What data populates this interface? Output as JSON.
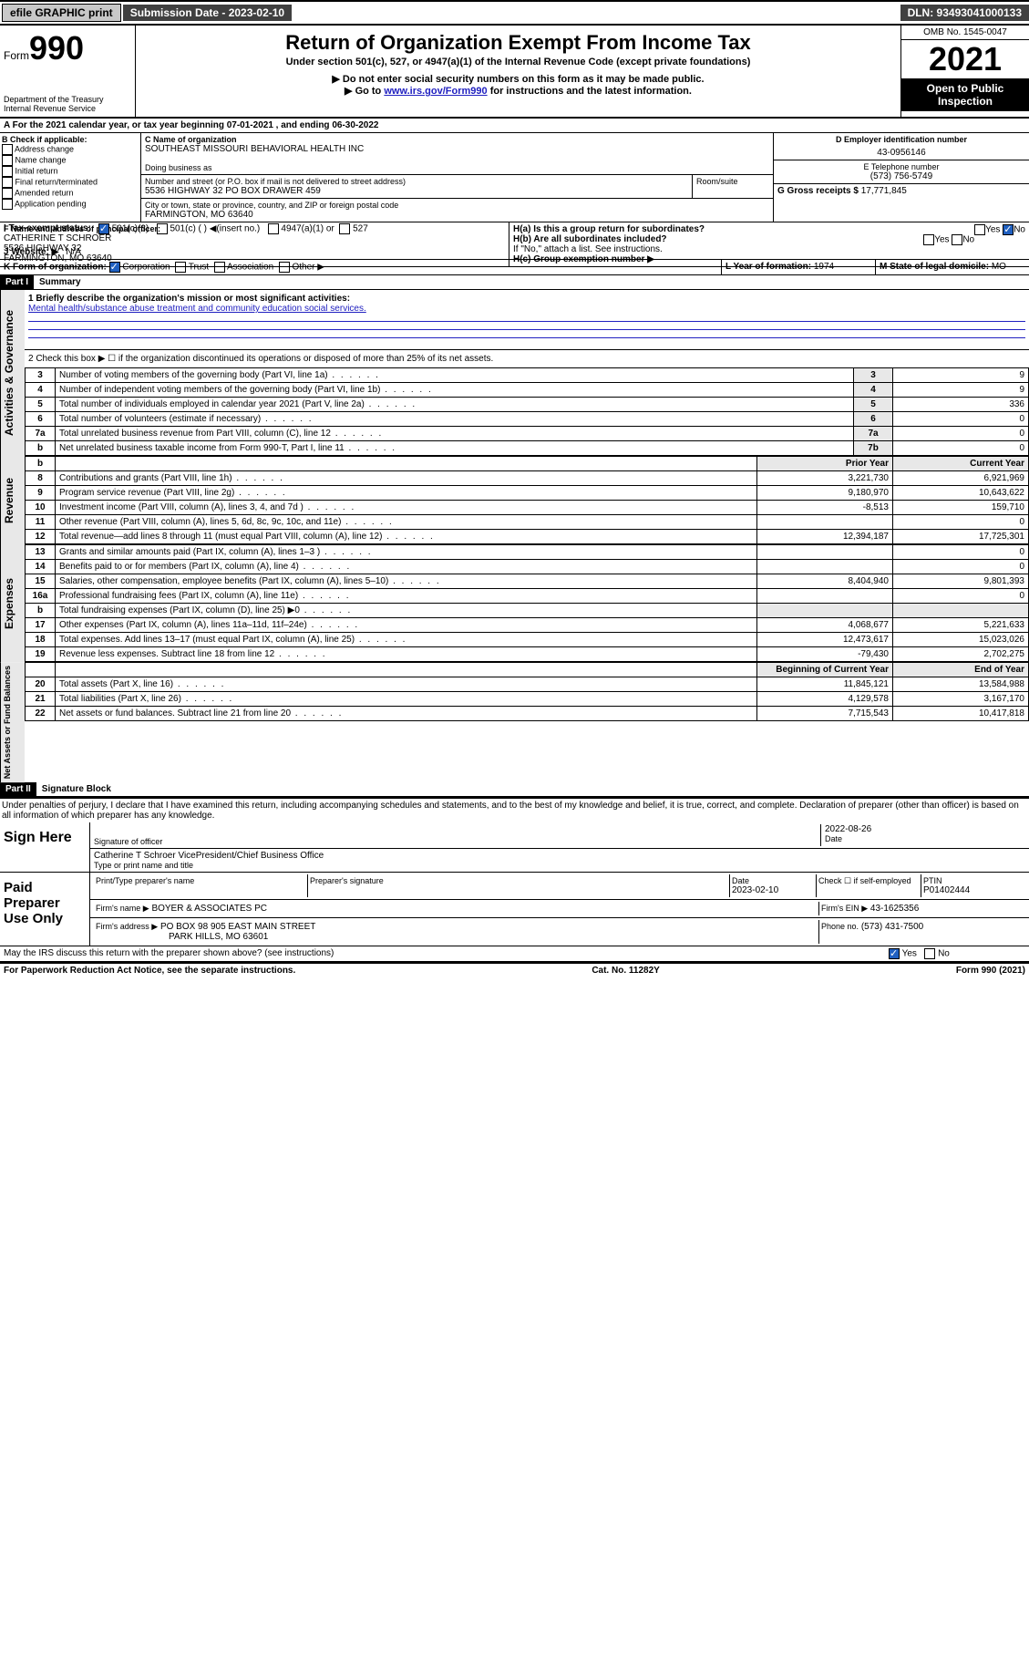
{
  "topbar": {
    "efile": "efile GRAPHIC print",
    "submission_label": "Submission Date - 2023-02-10",
    "dln": "DLN: 93493041000133"
  },
  "header": {
    "form_prefix": "Form",
    "form_number": "990",
    "dept": "Department of the Treasury",
    "irs": "Internal Revenue Service",
    "title": "Return of Organization Exempt From Income Tax",
    "subtitle": "Under section 501(c), 527, or 4947(a)(1) of the Internal Revenue Code (except private foundations)",
    "note1": "▶ Do not enter social security numbers on this form as it may be made public.",
    "note2_pre": "▶ Go to ",
    "note2_link": "www.irs.gov/Form990",
    "note2_post": " for instructions and the latest information.",
    "omb": "OMB No. 1545-0047",
    "year": "2021",
    "open": "Open to Public Inspection"
  },
  "period": {
    "text": "A For the 2021 calendar year, or tax year beginning 07-01-2021   , and ending 06-30-2022"
  },
  "boxB": {
    "title": "B Check if applicable:",
    "opts": [
      "Address change",
      "Name change",
      "Initial return",
      "Final return/terminated",
      "Amended return",
      "Application pending"
    ]
  },
  "boxC": {
    "label": "C Name of organization",
    "name": "SOUTHEAST MISSOURI BEHAVIORAL HEALTH INC",
    "dba_label": "Doing business as",
    "street_label": "Number and street (or P.O. box if mail is not delivered to street address)",
    "room_label": "Room/suite",
    "street": "5536 HIGHWAY 32 PO BOX DRAWER 459",
    "city_label": "City or town, state or province, country, and ZIP or foreign postal code",
    "city": "FARMINGTON, MO  63640"
  },
  "boxD": {
    "label": "D Employer identification number",
    "ein": "43-0956146"
  },
  "boxE": {
    "label": "E Telephone number",
    "phone": "(573) 756-5749"
  },
  "boxG": {
    "label": "G Gross receipts $",
    "amount": "17,771,845"
  },
  "boxF": {
    "label": "F Name and address of principal officer:",
    "name": "CATHERINE T SCHROER",
    "addr1": "5536 HIGHWAY 32",
    "addr2": "FARMINGTON, MO  63640"
  },
  "boxH": {
    "a_label": "H(a)  Is this a group return for subordinates?",
    "b_label": "H(b)  Are all subordinates included?",
    "b_note": "If \"No,\" attach a list. See instructions.",
    "c_label": "H(c)  Group exemption number ▶"
  },
  "boxI": {
    "label": "I   Tax-exempt status:",
    "o501c3": "501(c)(3)",
    "o501c": "501(c) (  ) ◀(insert no.)",
    "o4947": "4947(a)(1) or",
    "o527": "527"
  },
  "boxJ": {
    "label": "J   Website: ▶",
    "val": "N/A"
  },
  "boxK": {
    "label": "K Form of organization:",
    "corp": "Corporation",
    "trust": "Trust",
    "assoc": "Association",
    "other": "Other ▶"
  },
  "boxL": {
    "label": "L Year of formation:",
    "val": "1974"
  },
  "boxM": {
    "label": "M State of legal domicile:",
    "val": "MO"
  },
  "part1": {
    "header": "Part I",
    "title": "Summary",
    "line1_label": "1   Briefly describe the organization's mission or most significant activities:",
    "line1_val": "Mental health/substance abuse treatment and community education social services.",
    "line2": "2   Check this box ▶ ☐  if the organization discontinued its operations or disposed of more than 25% of its net assets.",
    "rows_single": [
      {
        "n": "3",
        "desc": "Number of voting members of the governing body (Part VI, line 1a)",
        "box": "3",
        "val": "9"
      },
      {
        "n": "4",
        "desc": "Number of independent voting members of the governing body (Part VI, line 1b)",
        "box": "4",
        "val": "9"
      },
      {
        "n": "5",
        "desc": "Total number of individuals employed in calendar year 2021 (Part V, line 2a)",
        "box": "5",
        "val": "336"
      },
      {
        "n": "6",
        "desc": "Total number of volunteers (estimate if necessary)",
        "box": "6",
        "val": "0"
      },
      {
        "n": "7a",
        "desc": "Total unrelated business revenue from Part VIII, column (C), line 12",
        "box": "7a",
        "val": "0"
      },
      {
        "n": "b",
        "desc": "Net unrelated business taxable income from Form 990-T, Part I, line 11",
        "box": "7b",
        "val": "0"
      }
    ],
    "col_headers": {
      "prior": "Prior Year",
      "curr": "Current Year"
    },
    "revenue_rows": [
      {
        "n": "8",
        "desc": "Contributions and grants (Part VIII, line 1h)",
        "prior": "3,221,730",
        "curr": "6,921,969"
      },
      {
        "n": "9",
        "desc": "Program service revenue (Part VIII, line 2g)",
        "prior": "9,180,970",
        "curr": "10,643,622"
      },
      {
        "n": "10",
        "desc": "Investment income (Part VIII, column (A), lines 3, 4, and 7d )",
        "prior": "-8,513",
        "curr": "159,710"
      },
      {
        "n": "11",
        "desc": "Other revenue (Part VIII, column (A), lines 5, 6d, 8c, 9c, 10c, and 11e)",
        "prior": "",
        "curr": "0"
      },
      {
        "n": "12",
        "desc": "Total revenue—add lines 8 through 11 (must equal Part VIII, column (A), line 12)",
        "prior": "12,394,187",
        "curr": "17,725,301"
      }
    ],
    "expense_rows": [
      {
        "n": "13",
        "desc": "Grants and similar amounts paid (Part IX, column (A), lines 1–3 )",
        "prior": "",
        "curr": "0"
      },
      {
        "n": "14",
        "desc": "Benefits paid to or for members (Part IX, column (A), line 4)",
        "prior": "",
        "curr": "0"
      },
      {
        "n": "15",
        "desc": "Salaries, other compensation, employee benefits (Part IX, column (A), lines 5–10)",
        "prior": "8,404,940",
        "curr": "9,801,393"
      },
      {
        "n": "16a",
        "desc": "Professional fundraising fees (Part IX, column (A), line 11e)",
        "prior": "",
        "curr": "0"
      },
      {
        "n": "b",
        "desc": "Total fundraising expenses (Part IX, column (D), line 25) ▶0",
        "prior": "GREY",
        "curr": "GREY"
      },
      {
        "n": "17",
        "desc": "Other expenses (Part IX, column (A), lines 11a–11d, 11f–24e)",
        "prior": "4,068,677",
        "curr": "5,221,633"
      },
      {
        "n": "18",
        "desc": "Total expenses. Add lines 13–17 (must equal Part IX, column (A), line 25)",
        "prior": "12,473,617",
        "curr": "15,023,026"
      },
      {
        "n": "19",
        "desc": "Revenue less expenses. Subtract line 18 from line 12",
        "prior": "-79,430",
        "curr": "2,702,275"
      }
    ],
    "net_headers": {
      "prior": "Beginning of Current Year",
      "curr": "End of Year"
    },
    "net_rows": [
      {
        "n": "20",
        "desc": "Total assets (Part X, line 16)",
        "prior": "11,845,121",
        "curr": "13,584,988"
      },
      {
        "n": "21",
        "desc": "Total liabilities (Part X, line 26)",
        "prior": "4,129,578",
        "curr": "3,167,170"
      },
      {
        "n": "22",
        "desc": "Net assets or fund balances. Subtract line 21 from line 20",
        "prior": "7,715,543",
        "curr": "10,417,818"
      }
    ],
    "sidebars": {
      "gov": "Activities & Governance",
      "rev": "Revenue",
      "exp": "Expenses",
      "net": "Net Assets or Fund Balances"
    }
  },
  "part2": {
    "header": "Part II",
    "title": "Signature Block",
    "decl": "Under penalties of perjury, I declare that I have examined this return, including accompanying schedules and statements, and to the best of my knowledge and belief, it is true, correct, and complete. Declaration of preparer (other than officer) is based on all information of which preparer has any knowledge.",
    "sign_here": "Sign Here",
    "sig_officer": "Signature of officer",
    "sig_date": "2022-08-26",
    "date_label": "Date",
    "officer_name": "Catherine T Schroer  VicePresident/Chief Business Office",
    "name_title_label": "Type or print name and title",
    "paid": "Paid Preparer Use Only",
    "prep_name_label": "Print/Type preparer's name",
    "prep_sig_label": "Preparer's signature",
    "prep_date_label": "Date",
    "prep_date": "2023-02-10",
    "check_label": "Check ☐ if self-employed",
    "ptin_label": "PTIN",
    "ptin": "P01402444",
    "firm_name_label": "Firm's name    ▶",
    "firm_name": "BOYER & ASSOCIATES PC",
    "firm_ein_label": "Firm's EIN ▶",
    "firm_ein": "43-1625356",
    "firm_addr_label": "Firm's address ▶",
    "firm_addr": "PO BOX 98 905 EAST MAIN STREET",
    "firm_city": "PARK HILLS, MO  63601",
    "firm_phone_label": "Phone no.",
    "firm_phone": "(573) 431-7500",
    "discuss": "May the IRS discuss this return with the preparer shown above? (see instructions)",
    "yes": "Yes",
    "no": "No"
  },
  "footer": {
    "left": "For Paperwork Reduction Act Notice, see the separate instructions.",
    "mid": "Cat. No. 11282Y",
    "right": "Form 990 (2021)"
  }
}
